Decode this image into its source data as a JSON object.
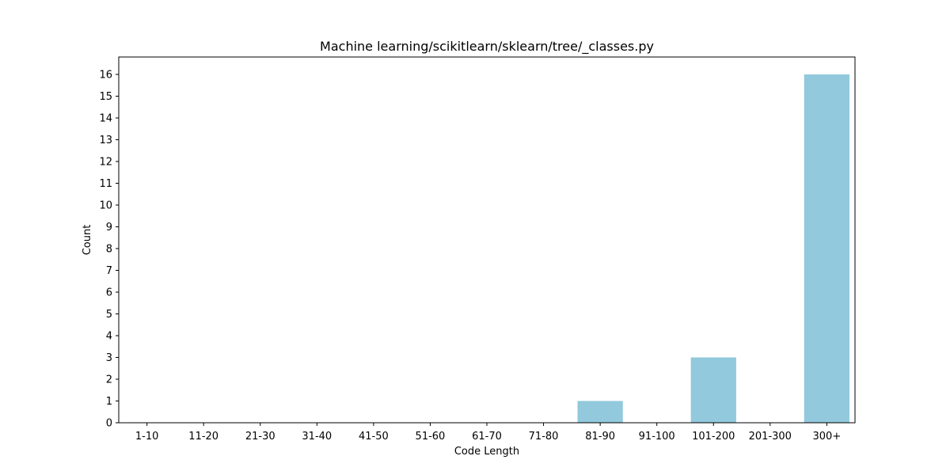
{
  "chart_data": {
    "type": "bar",
    "title": "Machine learning/scikitlearn/sklearn/tree/_classes.py",
    "xlabel": "Code Length",
    "ylabel": "Count",
    "categories": [
      "1-10",
      "11-20",
      "21-30",
      "31-40",
      "41-50",
      "51-60",
      "61-70",
      "71-80",
      "81-90",
      "91-100",
      "101-200",
      "201-300",
      "300+"
    ],
    "values": [
      0,
      0,
      0,
      0,
      0,
      0,
      0,
      0,
      1,
      0,
      3,
      0,
      16
    ],
    "ylim": [
      0,
      16.8
    ],
    "yticks": [
      0,
      1,
      2,
      3,
      4,
      5,
      6,
      7,
      8,
      9,
      10,
      11,
      12,
      13,
      14,
      15,
      16
    ],
    "bar_color": "#92c9dc",
    "grid": false
  }
}
